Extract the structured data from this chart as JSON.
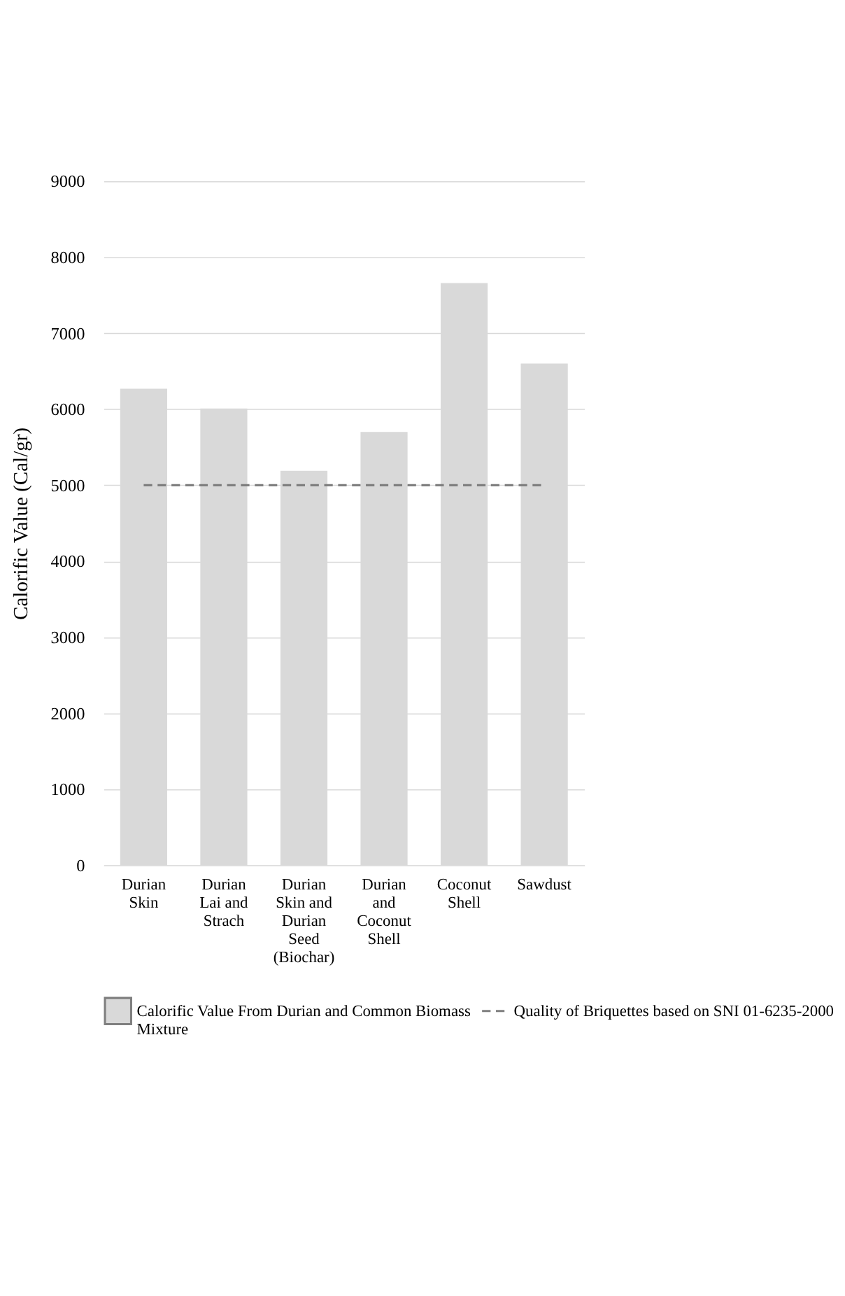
{
  "chart_data": {
    "type": "bar",
    "ylabel": "Calorific Value (Cal/gr)",
    "categories": [
      "Durian Skin",
      "Durian Lai and Strach",
      "Durian Skin and Durian Seed (Biochar)",
      "Durian and Coconut Shell",
      "Coconut Shell",
      "Sawdust"
    ],
    "series": [
      {
        "name": "Calorific Value From Durian and Common Biomass Mixture",
        "color": "#d9d9d9",
        "values": [
          6270,
          6010,
          5190,
          5700,
          7660,
          6600
        ]
      }
    ],
    "ref_lines": [
      {
        "axis": "y",
        "value": 5000,
        "label": "Quality of Briquettes based on SNI 01-6235-2000",
        "color": "#7f7f7f",
        "line_style": "dashed"
      }
    ],
    "ylim": [
      0,
      9000
    ],
    "yticks": [
      0,
      1000,
      2000,
      3000,
      4000,
      5000,
      6000,
      7000,
      8000,
      9000
    ],
    "grid": "y",
    "legend": "bottom"
  }
}
